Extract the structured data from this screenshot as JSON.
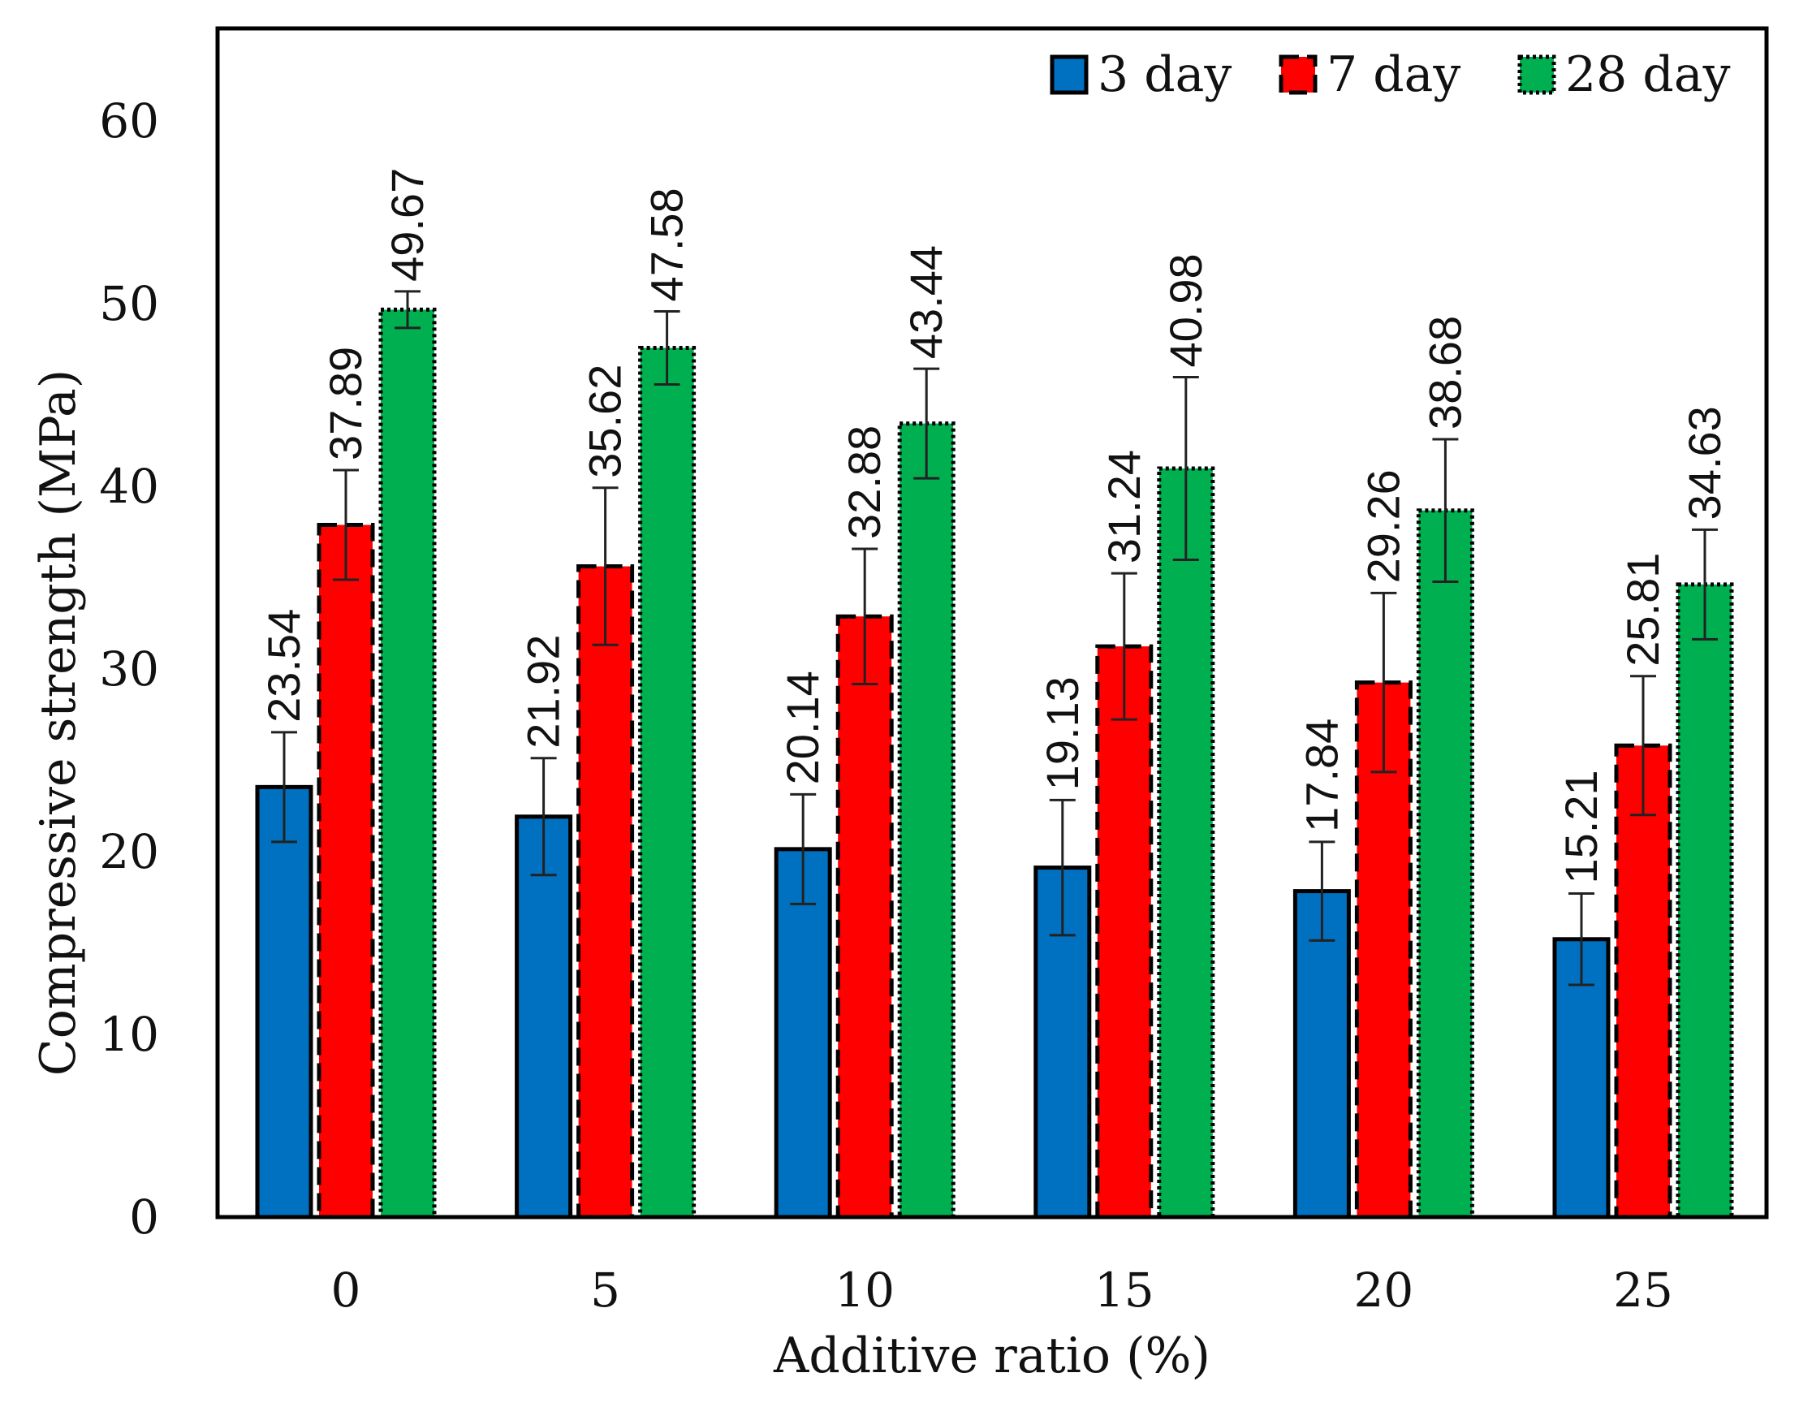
{
  "chart_data": {
    "type": "bar",
    "title": "",
    "xlabel": "Additive ratio (%)",
    "ylabel": "Compressive strength (MPa)",
    "ylim": [
      0,
      65
    ],
    "yticks": [
      0,
      10,
      20,
      30,
      40,
      50,
      60
    ],
    "ytick_labels": [
      "0",
      "10",
      "20",
      "30",
      "40",
      "50",
      "60"
    ],
    "categories": [
      "0",
      "5",
      "10",
      "15",
      "20",
      "25"
    ],
    "legend_position": "top-right",
    "grid": false,
    "series": [
      {
        "name": "3 day",
        "color": "#0070C0",
        "border_style": "solid",
        "values": [
          23.54,
          21.92,
          20.14,
          19.13,
          17.84,
          15.21
        ],
        "labels": [
          "23.54",
          "21.92",
          "20.14",
          "19.13",
          "17.84",
          "15.21"
        ],
        "errors": [
          3.0,
          3.2,
          3.0,
          3.7,
          2.7,
          2.5
        ]
      },
      {
        "name": "7 day",
        "color": "#FF0000",
        "border_style": "dashed",
        "values": [
          37.89,
          35.62,
          32.88,
          31.24,
          29.26,
          25.81
        ],
        "labels": [
          "37.89",
          "35.62",
          "32.88",
          "31.24",
          "29.26",
          "25.81"
        ],
        "errors": [
          3.0,
          4.3,
          3.7,
          4.0,
          4.9,
          3.8
        ]
      },
      {
        "name": "28 day",
        "color": "#00B050",
        "border_style": "dotted",
        "values": [
          49.67,
          47.58,
          43.44,
          40.98,
          38.68,
          34.63
        ],
        "labels": [
          "49.67",
          "47.58",
          "43.44",
          "40.98",
          "38.68",
          "34.63"
        ],
        "errors": [
          1.0,
          2.0,
          3.0,
          5.0,
          3.9,
          3.0
        ]
      }
    ]
  }
}
